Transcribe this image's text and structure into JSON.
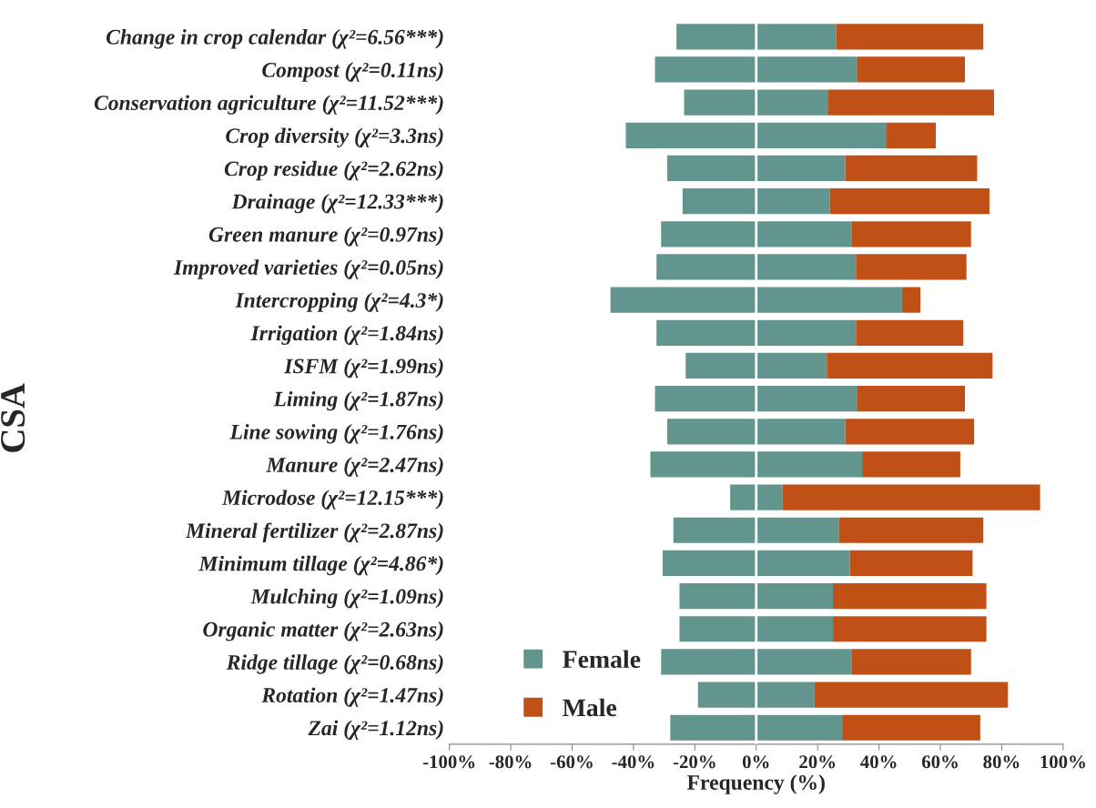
{
  "chart_data": {
    "type": "bar",
    "orientation": "horizontal",
    "stacked": true,
    "xlabel": "Frequency (%)",
    "ylabel": "CSA",
    "categories": [
      "Change in crop calendar (χ²=6.56***)",
      "Compost (χ²=0.11ns)",
      "Conservation agriculture (χ²=11.52***)",
      "Crop diversity (χ²=3.3ns)",
      "Crop residue (χ²=2.62ns)",
      "Drainage (χ²=12.33***)",
      "Green manure (χ²=0.97ns)",
      "Improved varieties (χ²=0.05ns)",
      "Intercropping (χ²=4.3*)",
      "Irrigation (χ²=1.84ns)",
      "ISFM (χ²=1.99ns)",
      "Liming (χ²=1.87ns)",
      "Line sowing (χ²=1.76ns)",
      "Manure (χ²=2.47ns)",
      "Microdose (χ²=12.15***)",
      "Mineral fertilizer (χ²=2.87ns)",
      "Minimum tillage (χ²=4.86*)",
      "Mulching (χ²=1.09ns)",
      "Organic matter (χ²=2.63ns)",
      "Ridge tillage (χ²=0.68ns)",
      "Rotation (χ²=1.47ns)",
      "Zai (χ²=1.12ns)"
    ],
    "series": [
      {
        "name": "Female",
        "color": "#62958d",
        "values": [
          26,
          33,
          23.5,
          42.5,
          29,
          24,
          31,
          32.5,
          47.5,
          32.5,
          23,
          33,
          29,
          34.5,
          8.5,
          27,
          30.5,
          25,
          25,
          31,
          19,
          28
        ]
      },
      {
        "color": "#62958d",
        "values": [
          -26,
          -33,
          -23.5,
          -42.5,
          -29,
          -24,
          -31,
          -32.5,
          -47.5,
          -32.5,
          -23,
          -33,
          -29,
          -34.5,
          -8.5,
          -27,
          -30.5,
          -25,
          -25,
          -31,
          -19,
          -28
        ]
      },
      {
        "name": "Male",
        "color": "#c05015",
        "values": [
          48,
          35,
          54,
          16,
          43,
          52,
          39,
          36,
          6,
          35,
          54,
          35,
          42,
          32,
          84,
          47,
          40,
          50,
          50,
          39,
          63,
          45
        ]
      }
    ],
    "xlim": [
      -100,
      100
    ],
    "xticks": [
      {
        "value": -100,
        "label": "-100%"
      },
      {
        "value": -80,
        "label": "-80%"
      },
      {
        "value": -60,
        "label": "-60%"
      },
      {
        "value": -40,
        "label": "-40%"
      },
      {
        "value": -20,
        "label": "-20%"
      },
      {
        "value": 0,
        "label": "0%"
      },
      {
        "value": 20,
        "label": "20%"
      },
      {
        "value": 40,
        "label": "40%"
      },
      {
        "value": 60,
        "label": "60%"
      },
      {
        "value": 80,
        "label": "80%"
      },
      {
        "value": 100,
        "label": "100%"
      }
    ],
    "ref_lines": [
      {
        "axis": "x",
        "value": 0,
        "color": "#ffffff"
      }
    ],
    "grid": false,
    "legend": "bottom left"
  }
}
